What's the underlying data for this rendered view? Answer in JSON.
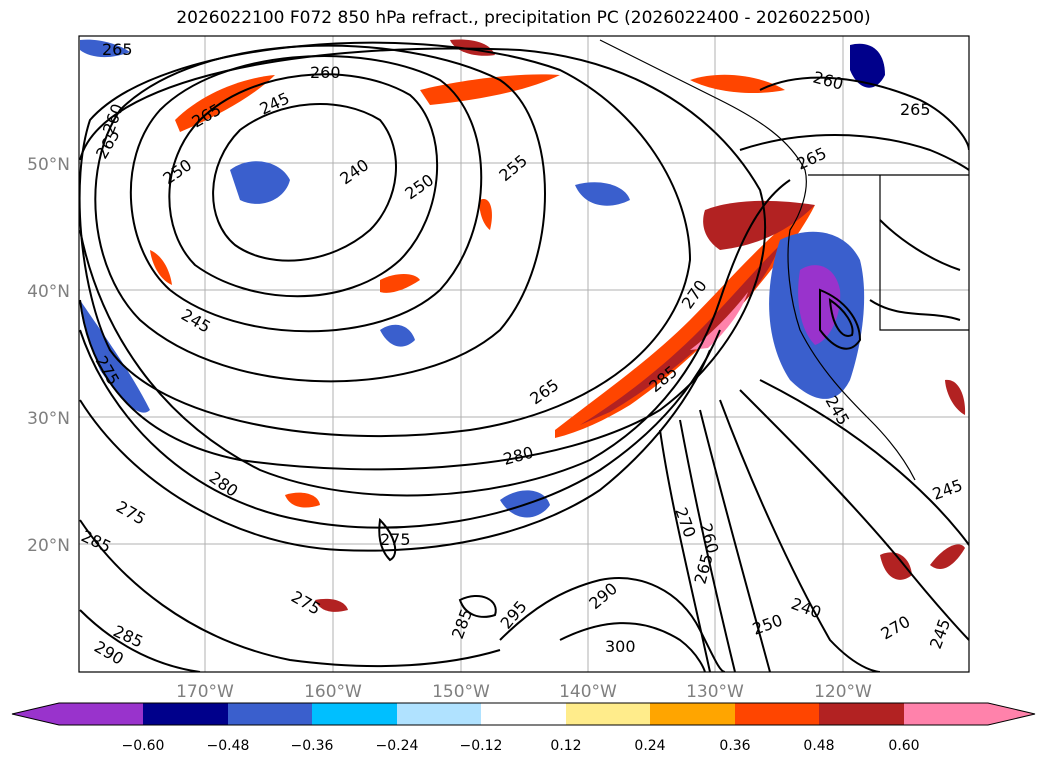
{
  "title": "2026022100 F072 850 hPa refract., precipitation PC (2026022400 - 2026022500)",
  "latitude_labels": [
    "50°N",
    "40°N",
    "30°N",
    "20°N"
  ],
  "longitude_labels": [
    "170°W",
    "160°W",
    "150°W",
    "140°W",
    "130°W",
    "120°W"
  ],
  "contour_labels": [
    "265",
    "260",
    "260",
    "265",
    "245",
    "240",
    "250",
    "255",
    "265",
    "260",
    "265",
    "265",
    "270",
    "250",
    "245",
    "275",
    "285",
    "265",
    "245",
    "280",
    "280",
    "275",
    "285",
    "275",
    "290",
    "285",
    "275",
    "270",
    "285",
    "295",
    "290",
    "300",
    "260",
    "265",
    "240",
    "250",
    "270",
    "245",
    "245"
  ],
  "colorbar": {
    "ticks": [
      "−0.60",
      "−0.48",
      "−0.36",
      "−0.24",
      "−0.12",
      "0.12",
      "0.24",
      "0.36",
      "0.48",
      "0.60"
    ],
    "colors": [
      "#9933cc",
      "#00008b",
      "#3a5fcd",
      "#00bfff",
      "#b0e2ff",
      "#ffffff",
      "#ffec8b",
      "#ffa500",
      "#ff4500",
      "#b22222",
      "#ff82ab"
    ]
  }
}
